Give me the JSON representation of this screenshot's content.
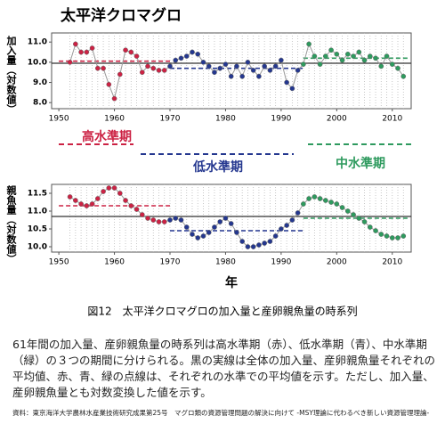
{
  "chart_data": [
    {
      "type": "scatter",
      "title": "太平洋クロマグロ",
      "y_label": "加入量（対数値）",
      "x": [
        1952,
        1953,
        1954,
        1955,
        1956,
        1957,
        1958,
        1959,
        1960,
        1961,
        1962,
        1963,
        1964,
        1965,
        1966,
        1967,
        1968,
        1969,
        1970,
        1971,
        1972,
        1973,
        1974,
        1975,
        1976,
        1977,
        1978,
        1979,
        1980,
        1981,
        1982,
        1983,
        1984,
        1985,
        1986,
        1987,
        1988,
        1989,
        1990,
        1991,
        1992,
        1993,
        1994,
        1995,
        1996,
        1997,
        1998,
        1999,
        2000,
        2001,
        2002,
        2003,
        2004,
        2005,
        2006,
        2007,
        2008,
        2009,
        2010,
        2011,
        2012
      ],
      "values": [
        10.0,
        10.9,
        10.5,
        10.5,
        10.7,
        9.7,
        9.7,
        8.9,
        8.2,
        9.4,
        10.6,
        10.5,
        10.3,
        9.5,
        9.8,
        9.7,
        9.6,
        9.6,
        9.8,
        10.1,
        10.2,
        10.3,
        10.5,
        10.4,
        10.0,
        9.8,
        9.5,
        9.7,
        9.9,
        9.3,
        9.8,
        9.3,
        10.0,
        9.6,
        9.3,
        9.8,
        9.6,
        9.8,
        10.1,
        9.0,
        8.7,
        9.6,
        9.9,
        10.9,
        10.3,
        9.9,
        10.3,
        10.6,
        10.4,
        10.1,
        10.4,
        10.3,
        10.5,
        10.1,
        10.3,
        10.2,
        9.8,
        10.3,
        9.9,
        9.7,
        9.3
      ],
      "xlim": [
        1948.7,
        2013.4
      ],
      "xticks": [
        1950,
        1960,
        1970,
        1980,
        1990,
        2000,
        2010
      ],
      "ylim": [
        7.7,
        11.45
      ],
      "yticks": [
        {
          "value": 8,
          "label": "8.0"
        },
        {
          "value": 9,
          "label": "9.0"
        },
        {
          "value": 10,
          "label": "10.0"
        },
        {
          "value": 11,
          "label": "11.0"
        }
      ],
      "mean": 9.95,
      "mean_color": "#333333",
      "periods": [
        {
          "start": 1950,
          "end": 1970,
          "mean": 10.05,
          "color": "#cc2244"
        },
        {
          "start": 1970,
          "end": 1994,
          "mean": 9.7,
          "color": "#24378f"
        },
        {
          "start": 1994,
          "end": 2013,
          "mean": 10.2,
          "color": "#2e9a5e"
        }
      ]
    },
    {
      "type": "scatter",
      "y_label": "親魚量（対数値）",
      "x_label": "年",
      "x": [
        1952,
        1953,
        1954,
        1955,
        1956,
        1957,
        1958,
        1959,
        1960,
        1961,
        1962,
        1963,
        1964,
        1965,
        1966,
        1967,
        1968,
        1969,
        1970,
        1971,
        1972,
        1973,
        1974,
        1975,
        1976,
        1977,
        1978,
        1979,
        1980,
        1981,
        1982,
        1983,
        1984,
        1985,
        1986,
        1987,
        1988,
        1989,
        1990,
        1991,
        1992,
        1993,
        1994,
        1995,
        1996,
        1997,
        1998,
        1999,
        2000,
        2001,
        2002,
        2003,
        2004,
        2005,
        2006,
        2007,
        2008,
        2009,
        2010,
        2011,
        2012
      ],
      "values": [
        11.4,
        11.3,
        11.2,
        11.15,
        11.2,
        11.35,
        11.55,
        11.65,
        11.65,
        11.5,
        11.3,
        11.15,
        11.05,
        10.9,
        10.8,
        10.75,
        10.7,
        10.7,
        10.75,
        10.8,
        10.75,
        10.55,
        10.35,
        10.25,
        10.3,
        10.4,
        10.55,
        10.7,
        10.8,
        10.65,
        10.4,
        10.15,
        10.0,
        10.0,
        10.05,
        10.1,
        10.15,
        10.3,
        10.5,
        10.6,
        10.75,
        10.95,
        11.2,
        11.35,
        11.4,
        11.35,
        11.3,
        11.25,
        11.2,
        11.1,
        11.0,
        10.9,
        10.8,
        10.7,
        10.55,
        10.45,
        10.35,
        10.3,
        10.25,
        10.25,
        10.3
      ],
      "xlim": [
        1948.7,
        2013.4
      ],
      "xticks": [
        1950,
        1960,
        1970,
        1980,
        1990,
        2000,
        2010
      ],
      "ylim": [
        9.85,
        11.75
      ],
      "yticks": [
        {
          "value": 10,
          "label": "10.0"
        },
        {
          "value": 10.5,
          "label": "10.5"
        },
        {
          "value": 11,
          "label": "11.0"
        },
        {
          "value": 11.5,
          "label": "11.5"
        }
      ],
      "mean": 10.85,
      "mean_color": "#333333",
      "periods": [
        {
          "start": 1950,
          "end": 1970,
          "mean": 11.15,
          "color": "#cc2244"
        },
        {
          "start": 1970,
          "end": 1994,
          "mean": 10.45,
          "color": "#24378f"
        },
        {
          "start": 1994,
          "end": 2013,
          "mean": 10.8,
          "color": "#2e9a5e"
        }
      ]
    }
  ],
  "period_labels": [
    {
      "text": "高水準期",
      "color": "#cc2244"
    },
    {
      "text": "低水準期",
      "color": "#24378f"
    },
    {
      "text": "中水準期",
      "color": "#2e9a5e"
    }
  ],
  "caption": "図12　太平洋クロマグロの加入量と産卵親魚量の時系列",
  "body": "61年間の加入量、産卵親魚量の時系列は高水準期（赤）、低水準期（青）、中水準期（緑）の３つの期間に分けられる。黒の実線は全体の加入量、産卵親魚量それぞれの平均値、赤、青、緑の点線は、それぞれの水準での平均値を示す。ただし、加入量、産卵親魚量とも対数変換した値を示す。",
  "source": "資料：東京海洋大学農林水産業技術研究成果第25号　マグロ類の資源管理問題の解決に向けて -MSY理論に代わるべき新しい資源管理理論-"
}
